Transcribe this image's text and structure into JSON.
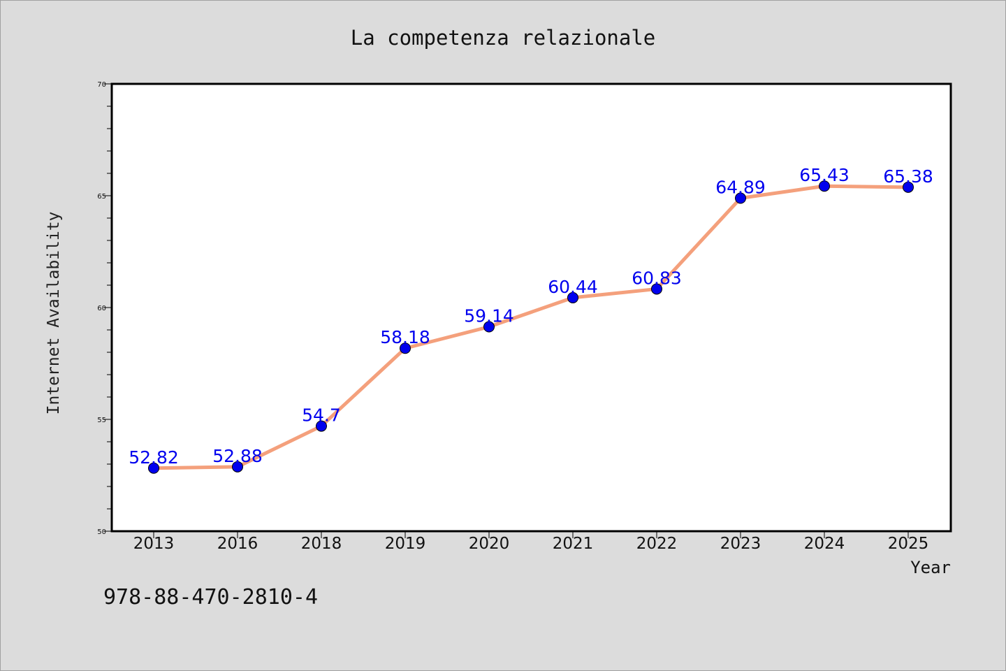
{
  "chart_data": {
    "type": "line",
    "title": "La competenza relazionale",
    "xlabel": "Year",
    "ylabel": "Internet Availability",
    "categories": [
      "2013",
      "2016",
      "2018",
      "2019",
      "2020",
      "2021",
      "2022",
      "2023",
      "2024",
      "2025"
    ],
    "series": [
      {
        "values": [
          52.82,
          52.88,
          54.7,
          58.18,
          59.14,
          60.44,
          60.83,
          64.89,
          65.43,
          65.38
        ],
        "line_color": "#f4a07c",
        "marker_color": "#0000ee"
      }
    ],
    "data_labels": [
      "52.82",
      "52.88",
      "54.7",
      "58.18",
      "59.14",
      "60.44",
      "60.83",
      "64.89",
      "65.43",
      "65.38"
    ],
    "data_label_color": "#0000ee",
    "ylim": [
      50,
      70
    ],
    "yticks": [
      50,
      55,
      60,
      65,
      70
    ],
    "grid": false,
    "legend": "none"
  },
  "footer_text": "978-88-470-2810-4"
}
